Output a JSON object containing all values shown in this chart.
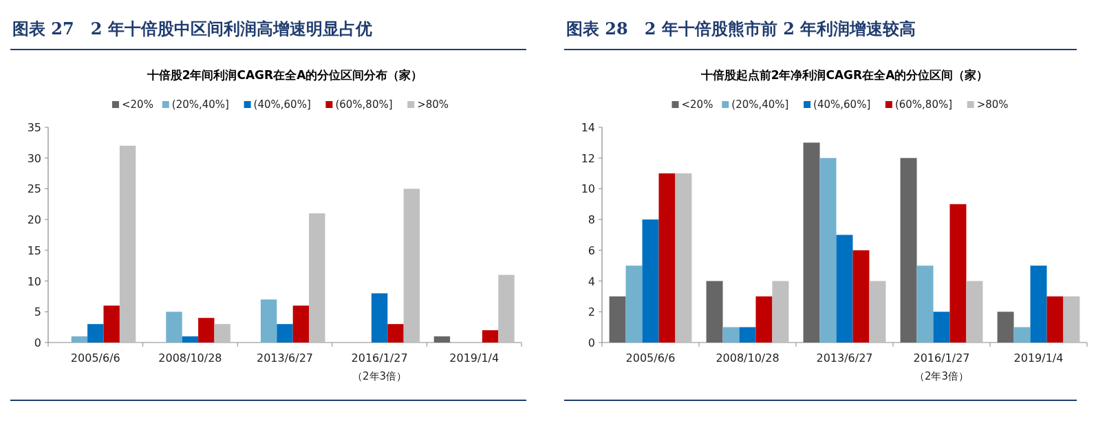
{
  "chart_data": [
    {
      "type": "bar",
      "title": "图表 27　2 年十倍股中区间利润高增速明显占优",
      "subtitle": "十倍股2年间利润CAGR在全A的分位区间分布（家）",
      "categories": [
        "2005/6/6",
        "2008/10/28",
        "2013/6/27",
        "2016/1/27\n（2年3倍）",
        "2019/1/4"
      ],
      "series": [
        {
          "name": "<20%",
          "color": "#666666",
          "values": [
            0,
            0,
            0,
            0,
            1
          ]
        },
        {
          "name": "(20%,40%]",
          "color": "#72b2cf",
          "values": [
            1,
            5,
            7,
            0,
            0
          ]
        },
        {
          "name": "(40%,60%]",
          "color": "#0070c0",
          "values": [
            3,
            1,
            3,
            8,
            0
          ]
        },
        {
          "name": "(60%,80%]",
          "color": "#c00000",
          "values": [
            6,
            4,
            6,
            3,
            2
          ]
        },
        {
          "name": ">80%",
          "color": "#c0c0c0",
          "values": [
            32,
            3,
            21,
            25,
            11
          ]
        }
      ],
      "ylim": [
        0,
        35
      ],
      "yticks": [
        0,
        5,
        10,
        15,
        20,
        25,
        30,
        35
      ],
      "legend": "top",
      "grid": false
    },
    {
      "type": "bar",
      "title": "图表 28　2 年十倍股熊市前 2 年利润增速较高",
      "subtitle": "十倍股起点前2年净利润CAGR在全A的分位区间（家）",
      "categories": [
        "2005/6/6",
        "2008/10/28",
        "2013/6/27",
        "2016/1/27\n（2年3倍）",
        "2019/1/4"
      ],
      "series": [
        {
          "name": "<20%",
          "color": "#666666",
          "values": [
            3,
            4,
            13,
            12,
            2
          ]
        },
        {
          "name": "(20%,40%]",
          "color": "#72b2cf",
          "values": [
            5,
            1,
            12,
            5,
            1
          ]
        },
        {
          "name": "(40%,60%]",
          "color": "#0070c0",
          "values": [
            8,
            1,
            7,
            2,
            5
          ]
        },
        {
          "name": "(60%,80%]",
          "color": "#c00000",
          "values": [
            11,
            3,
            6,
            9,
            3
          ]
        },
        {
          "name": ">80%",
          "color": "#c0c0c0",
          "values": [
            11,
            4,
            4,
            4,
            3
          ]
        }
      ],
      "ylim": [
        0,
        14
      ],
      "yticks": [
        0,
        2,
        4,
        6,
        8,
        10,
        12,
        14
      ],
      "legend": "top",
      "grid": false
    }
  ]
}
